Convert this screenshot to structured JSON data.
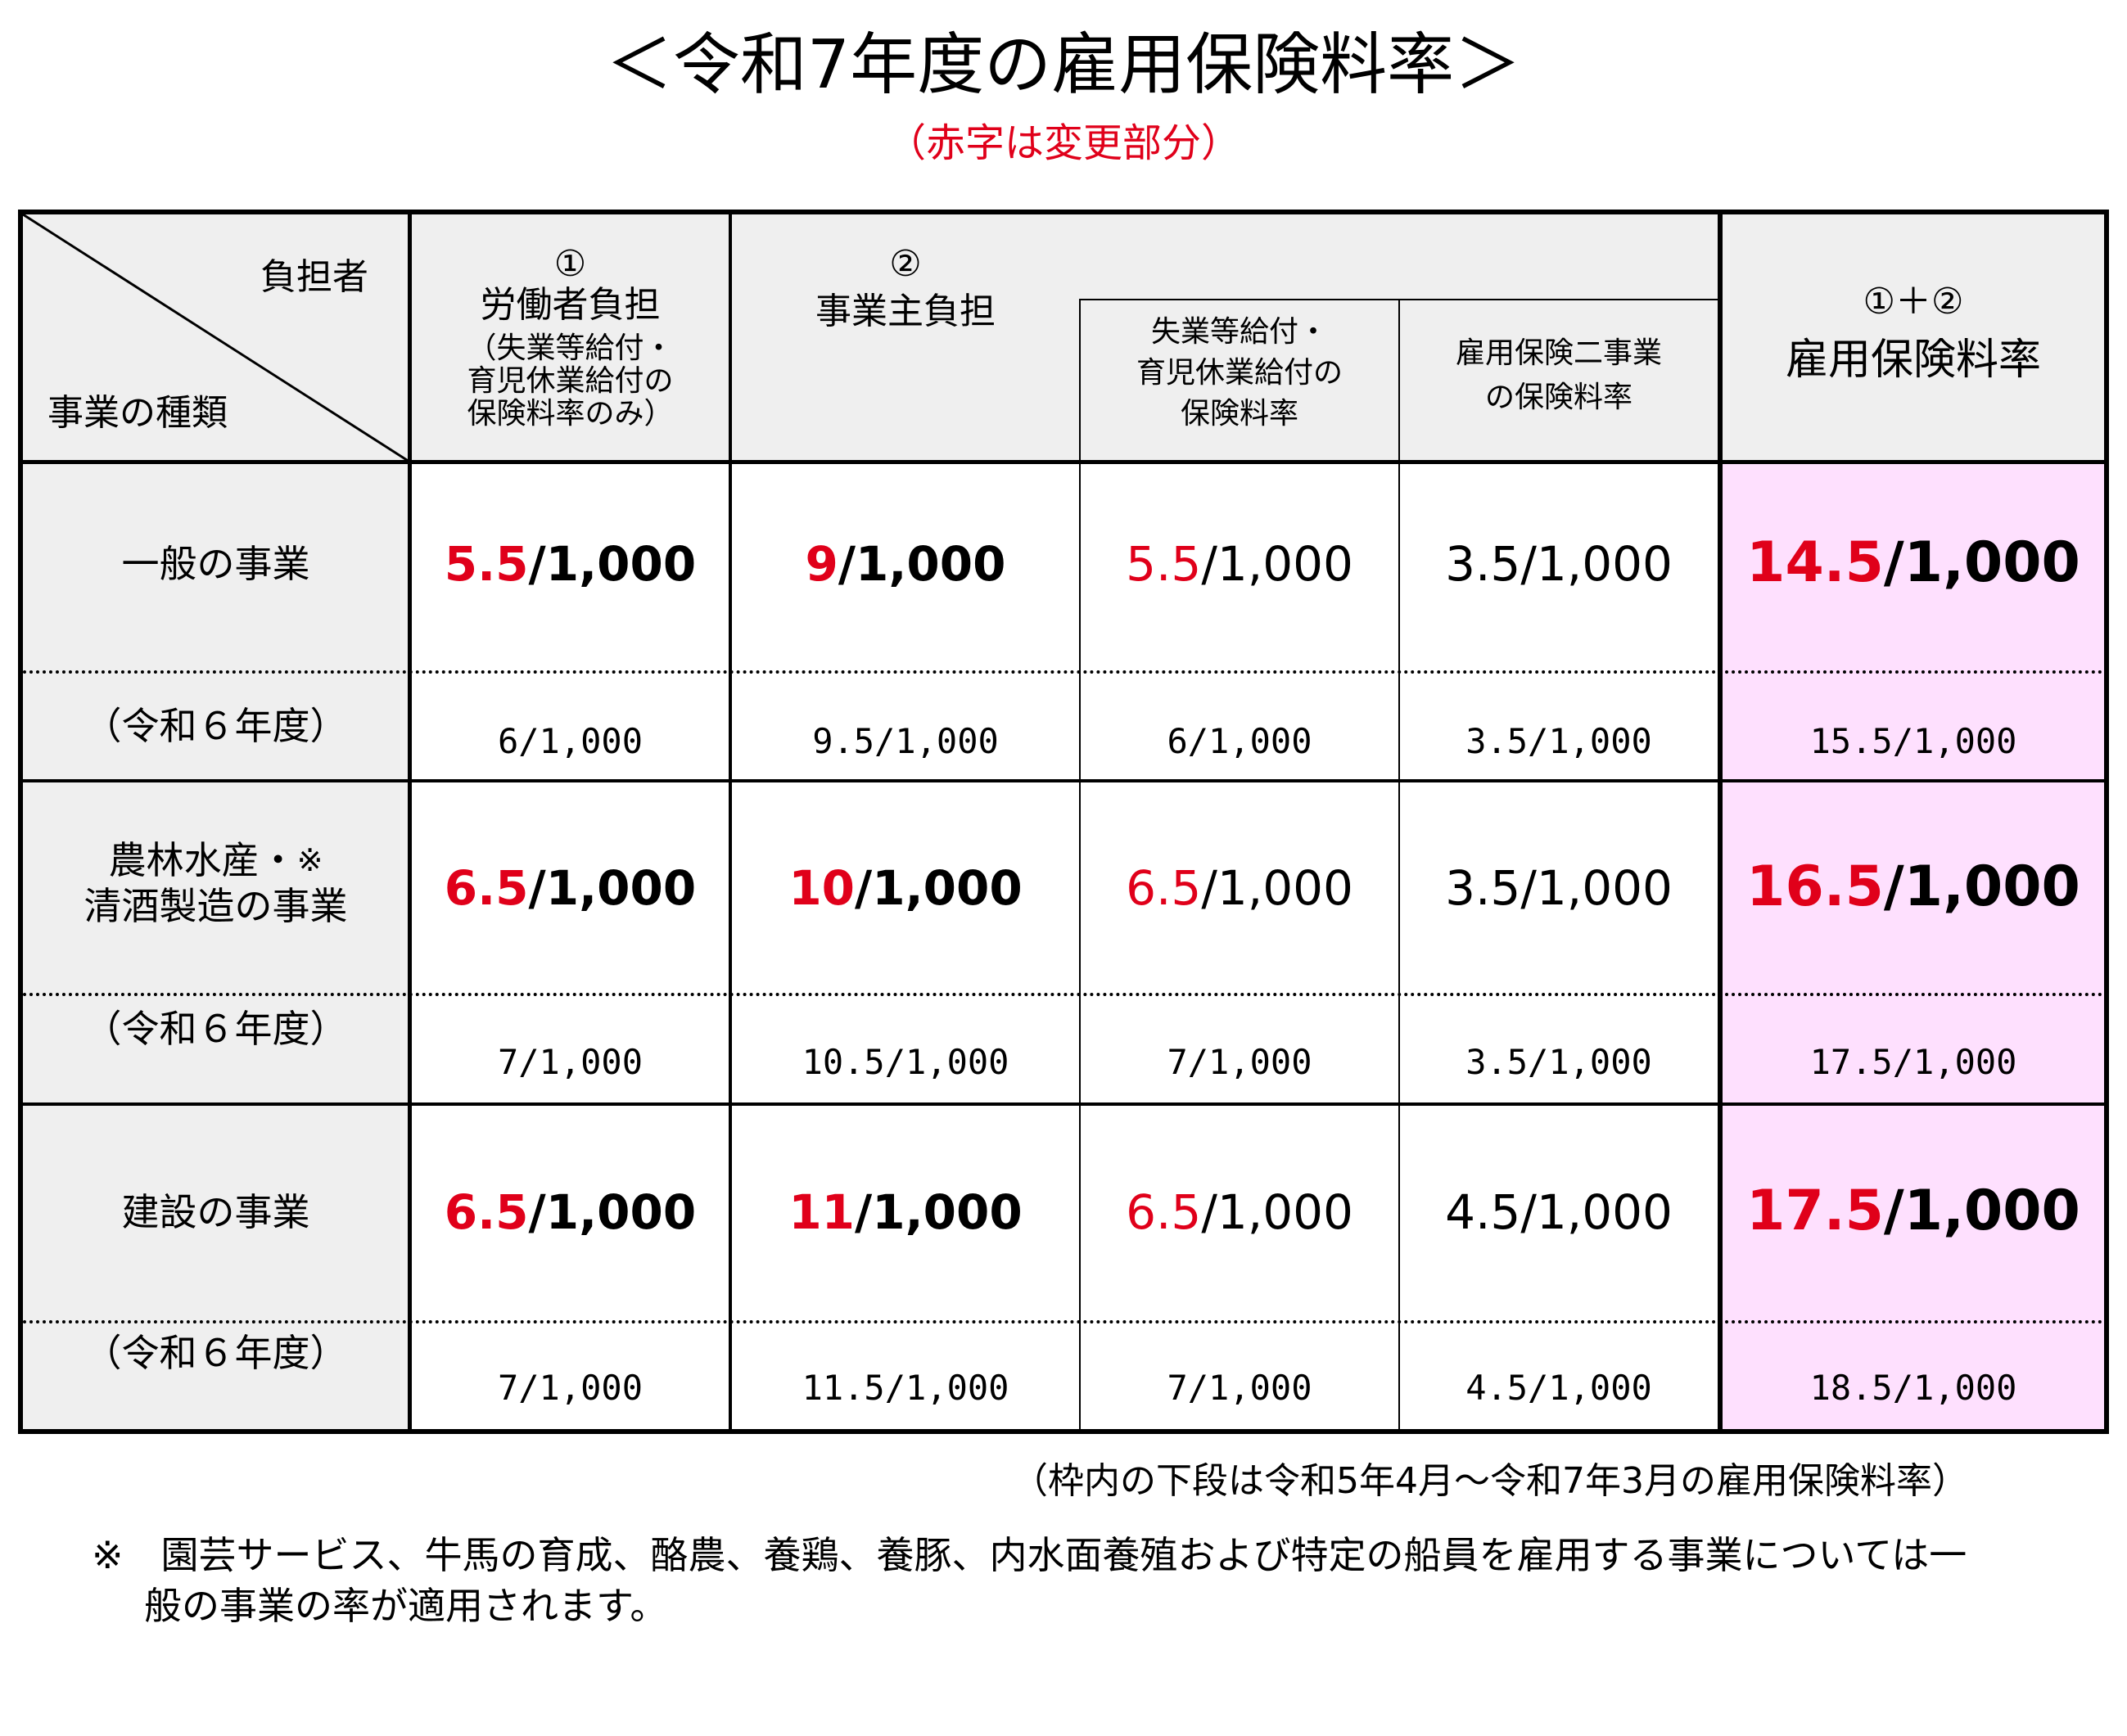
{
  "title": "＜令和7年度の雇用保険料率＞",
  "subtitle": "（赤字は変更部分）",
  "header": {
    "burden_label": "負担者",
    "category_label": "事業の種類",
    "col1_num": "①",
    "col1_title": "労働者負担",
    "col1_note": [
      "（失業等給付・",
      "育児休業給付の",
      "保険料率のみ）"
    ],
    "col2_num": "②",
    "col2_title": "事業主負担",
    "col2a": [
      "失業等給付・",
      "育児休業給付の",
      "保険料率"
    ],
    "col2b": [
      "雇用保険二事業",
      "の保険料率"
    ],
    "col3_num": "①＋②",
    "col3_title": "雇用保険料率"
  },
  "rows": [
    {
      "category": "一般の事業",
      "prev_label": "（令和６年度）",
      "worker": {
        "red": "5.5",
        "rest": "/1,000"
      },
      "employer": {
        "red": "9",
        "rest": "/1,000"
      },
      "employer_a": {
        "red": "5.5",
        "rest": "/1,000"
      },
      "employer_b": "3.5/1,000",
      "total": {
        "red": "14.5",
        "rest": "/1,000"
      },
      "prev": {
        "worker": "6/1,000",
        "employer": "9.5/1,000",
        "employer_a": "6/1,000",
        "employer_b": "3.5/1,000",
        "total": "15.5/1,000"
      }
    },
    {
      "category_line1": "農林水産・",
      "category_mark": "※",
      "category_line2": "清酒製造の事業",
      "prev_label": "（令和６年度）",
      "worker": {
        "red": "6.5",
        "rest": "/1,000"
      },
      "employer": {
        "red": "10",
        "rest": "/1,000"
      },
      "employer_a": {
        "red": "6.5",
        "rest": "/1,000"
      },
      "employer_b": "3.5/1,000",
      "total": {
        "red": "16.5",
        "rest": "/1,000"
      },
      "prev": {
        "worker": "7/1,000",
        "employer": "10.5/1,000",
        "employer_a": "7/1,000",
        "employer_b": "3.5/1,000",
        "total": "17.5/1,000"
      }
    },
    {
      "category": "建設の事業",
      "prev_label": "（令和６年度）",
      "worker": {
        "red": "6.5",
        "rest": "/1,000"
      },
      "employer": {
        "red": "11",
        "rest": "/1,000"
      },
      "employer_a": {
        "red": "6.5",
        "rest": "/1,000"
      },
      "employer_b": "4.5/1,000",
      "total": {
        "red": "17.5",
        "rest": "/1,000"
      },
      "prev": {
        "worker": "7/1,000",
        "employer": "11.5/1,000",
        "employer_a": "7/1,000",
        "employer_b": "4.5/1,000",
        "total": "18.5/1,000"
      }
    }
  ],
  "notes": {
    "period": "（枠内の下段は令和5年4月～令和7年3月の雇用保険料率）",
    "asterisk_line1": "※　園芸サービス、牛馬の育成、酪農、養鶏、養豚、内水面養殖および特定の船員を雇用する事業については一",
    "asterisk_line2": "般の事業の率が適用されます。"
  },
  "colors": {
    "red": "#e0001a",
    "header_gray": "#efefef",
    "total_pink": "#fee0fe"
  }
}
